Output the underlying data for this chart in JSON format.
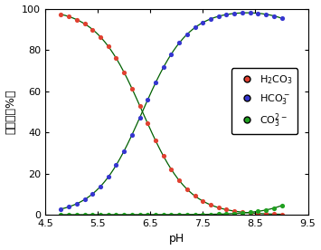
{
  "xlabel": "pH",
  "ylabel": "モル比（%）",
  "xlim": [
    4.5,
    9.5
  ],
  "ylim": [
    0,
    100
  ],
  "xticks": [
    4.5,
    5.5,
    6.5,
    7.5,
    8.5,
    9.5
  ],
  "yticks": [
    0,
    20,
    40,
    60,
    80,
    100
  ],
  "pKa1": 6.35,
  "pKa2": 10.33,
  "color_h2co3": "#e04030",
  "color_hco3": "#3535d0",
  "color_co3": "#20a020",
  "line_color": "#006000",
  "dot_interval": 0.15,
  "ph_start": 4.8,
  "ph_end": 9.0,
  "marker_size": 14
}
